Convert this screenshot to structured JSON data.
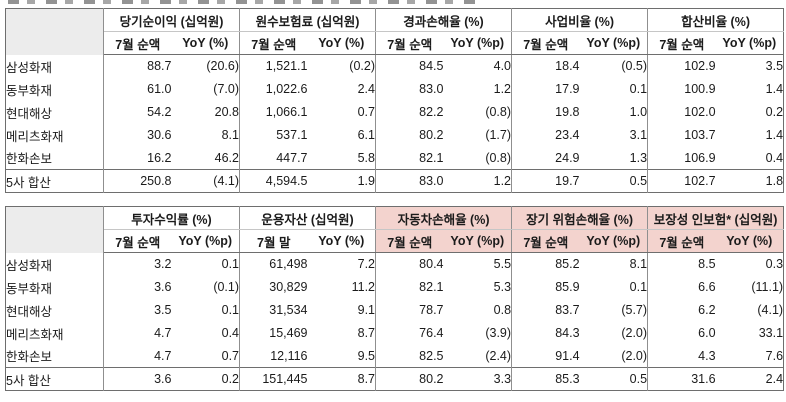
{
  "page": {
    "description": "Korean insurers monthly results comparison table",
    "cropped_title_note": "partial title text cut off at top edge"
  },
  "colors": {
    "highlight_header_bg": "#f3d3ce",
    "corner_cell_bg": "#ececec",
    "border_dark": "#6e6e6e",
    "border_mid": "#8f8f8f",
    "text": "#1b1b1b"
  },
  "tables": [
    {
      "id": "top-table",
      "corner_label": "",
      "groups": [
        {
          "title": "당기순이익 (십억원)",
          "sub": [
            "7월 순액",
            "YoY (%)"
          ],
          "highlight": false
        },
        {
          "title": "원수보험료 (십억원)",
          "sub": [
            "7월 순액",
            "YoY (%)"
          ],
          "highlight": false
        },
        {
          "title": "경과손해율 (%)",
          "sub": [
            "7월 순액",
            "YoY (%p)"
          ],
          "highlight": false
        },
        {
          "title": "사업비율 (%)",
          "sub": [
            "7월 순액",
            "YoY (%p)"
          ],
          "highlight": false
        },
        {
          "title": "합산비율 (%)",
          "sub": [
            "7월 순액",
            "YoY (%p)"
          ],
          "highlight": false
        }
      ],
      "rows": [
        {
          "label": "삼성화재",
          "summary": false,
          "values": [
            "88.7",
            "(20.6)",
            "1,521.1",
            "(0.2)",
            "84.5",
            "4.0",
            "18.4",
            "(0.5)",
            "102.9",
            "3.5"
          ]
        },
        {
          "label": "동부화재",
          "summary": false,
          "values": [
            "61.0",
            "(7.0)",
            "1,022.6",
            "2.4",
            "83.0",
            "1.2",
            "17.9",
            "0.1",
            "100.9",
            "1.4"
          ]
        },
        {
          "label": "현대해상",
          "summary": false,
          "values": [
            "54.2",
            "20.8",
            "1,066.1",
            "0.7",
            "82.2",
            "(0.8)",
            "19.8",
            "1.0",
            "102.0",
            "0.2"
          ]
        },
        {
          "label": "메리츠화재",
          "summary": false,
          "values": [
            "30.6",
            "8.1",
            "537.1",
            "6.1",
            "80.2",
            "(1.7)",
            "23.4",
            "3.1",
            "103.7",
            "1.4"
          ]
        },
        {
          "label": "한화손보",
          "summary": false,
          "values": [
            "16.2",
            "46.2",
            "447.7",
            "5.8",
            "82.1",
            "(0.8)",
            "24.9",
            "1.3",
            "106.9",
            "0.4"
          ]
        },
        {
          "label": "5사 합산",
          "summary": true,
          "values": [
            "250.8",
            "(4.1)",
            "4,594.5",
            "1.9",
            "83.0",
            "1.2",
            "19.7",
            "0.5",
            "102.7",
            "1.8"
          ]
        }
      ]
    },
    {
      "id": "bottom-table",
      "corner_label": "",
      "groups": [
        {
          "title": "투자수익률 (%)",
          "sub": [
            "7월 순액",
            "YoY (%p)"
          ],
          "highlight": false
        },
        {
          "title": "운용자산 (십억원)",
          "sub": [
            "7월 말",
            "YoY (%)"
          ],
          "highlight": false
        },
        {
          "title": "자동차손해율 (%)",
          "sub": [
            "7월 순액",
            "YoY (%p)"
          ],
          "highlight": true
        },
        {
          "title": "장기 위험손해율 (%)",
          "sub": [
            "7월 순액",
            "YoY (%p)"
          ],
          "highlight": true
        },
        {
          "title": "보장성 인보험* (십억원)",
          "sub": [
            "7월 순액",
            "YoY (%)"
          ],
          "highlight": true
        }
      ],
      "rows": [
        {
          "label": "삼성화재",
          "summary": false,
          "values": [
            "3.2",
            "0.1",
            "61,498",
            "7.2",
            "80.4",
            "5.5",
            "85.2",
            "8.1",
            "8.5",
            "0.3"
          ]
        },
        {
          "label": "동부화재",
          "summary": false,
          "values": [
            "3.6",
            "(0.1)",
            "30,829",
            "11.2",
            "82.1",
            "5.3",
            "85.9",
            "0.1",
            "6.6",
            "(11.1)"
          ]
        },
        {
          "label": "현대해상",
          "summary": false,
          "values": [
            "3.5",
            "0.1",
            "31,534",
            "9.1",
            "78.7",
            "0.8",
            "83.7",
            "(5.7)",
            "6.2",
            "(4.1)"
          ]
        },
        {
          "label": "메리츠화재",
          "summary": false,
          "values": [
            "4.7",
            "0.4",
            "15,469",
            "8.7",
            "76.4",
            "(3.9)",
            "84.3",
            "(2.0)",
            "6.0",
            "33.1"
          ]
        },
        {
          "label": "한화손보",
          "summary": false,
          "values": [
            "4.7",
            "0.7",
            "12,116",
            "9.5",
            "82.5",
            "(2.4)",
            "91.4",
            "(2.0)",
            "4.3",
            "7.6"
          ]
        },
        {
          "label": "5사 합산",
          "summary": true,
          "values": [
            "3.6",
            "0.2",
            "151,445",
            "8.7",
            "80.2",
            "3.3",
            "85.3",
            "0.5",
            "31.6",
            "2.4"
          ]
        }
      ]
    }
  ]
}
